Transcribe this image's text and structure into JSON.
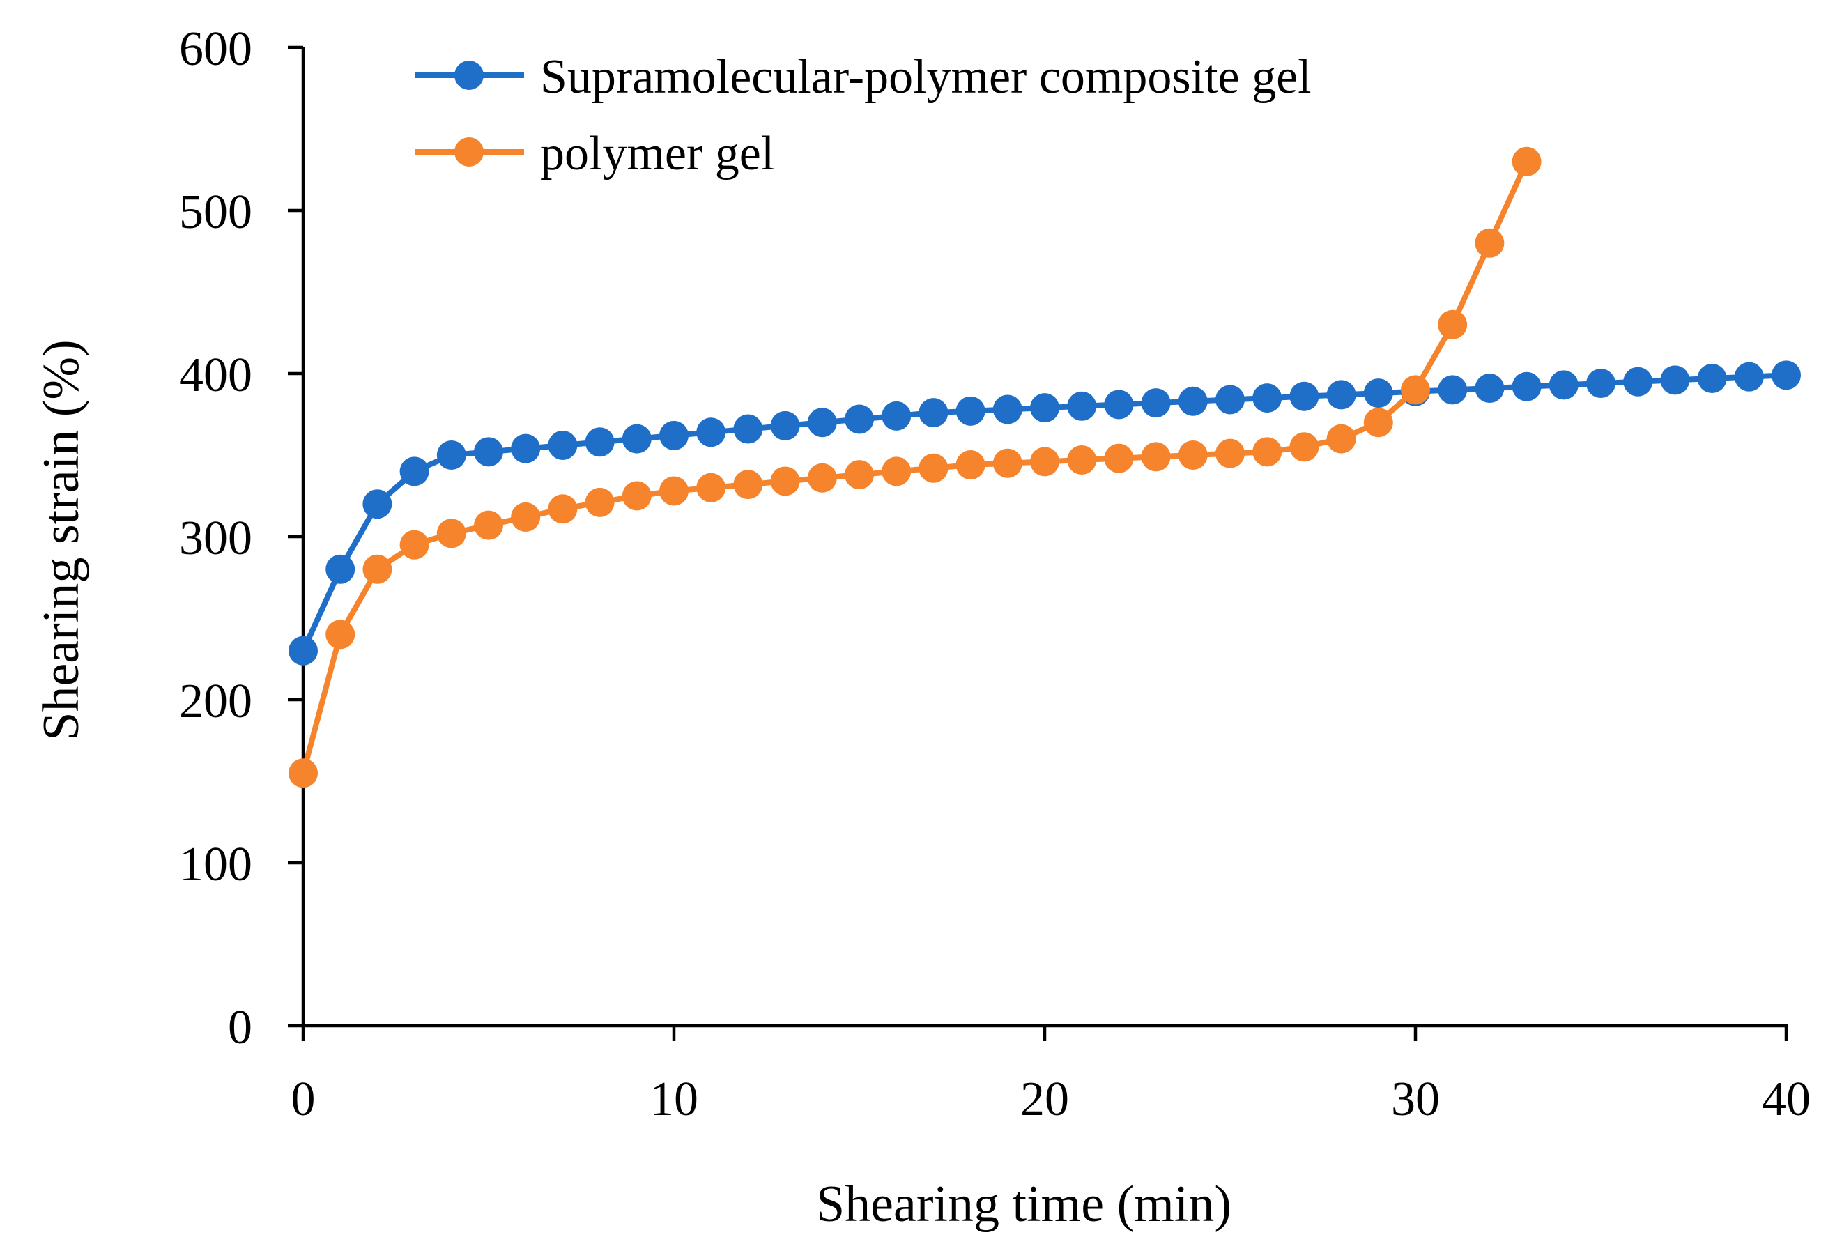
{
  "chart_data": {
    "type": "line",
    "title": "",
    "xlabel": "Shearing time (min)",
    "ylabel": "Shearing strain (%)",
    "xlim": [
      0,
      40
    ],
    "ylim": [
      0,
      600
    ],
    "xticks": [
      0,
      10,
      20,
      30,
      40
    ],
    "yticks": [
      0,
      100,
      200,
      300,
      400,
      500,
      600
    ],
    "grid": false,
    "legend_position": "top-center",
    "series": [
      {
        "name": "Supramolecular-polymer composite gel",
        "color": "#1f6fc8",
        "x": [
          0,
          1,
          2,
          3,
          4,
          5,
          6,
          7,
          8,
          9,
          10,
          11,
          12,
          13,
          14,
          15,
          16,
          17,
          18,
          19,
          20,
          21,
          22,
          23,
          24,
          25,
          26,
          27,
          28,
          29,
          30,
          31,
          32,
          33,
          34,
          35,
          36,
          37,
          38,
          39,
          40
        ],
        "values": [
          230,
          280,
          320,
          340,
          350,
          352,
          354,
          356,
          358,
          360,
          362,
          364,
          366,
          368,
          370,
          372,
          374,
          376,
          377,
          378,
          379,
          380,
          381,
          382,
          383,
          384,
          385,
          386,
          387,
          388,
          389,
          390,
          391,
          392,
          393,
          394,
          395,
          396,
          397,
          398,
          399
        ]
      },
      {
        "name": "polymer gel",
        "color": "#f5842c",
        "x": [
          0,
          1,
          2,
          3,
          4,
          5,
          6,
          7,
          8,
          9,
          10,
          11,
          12,
          13,
          14,
          15,
          16,
          17,
          18,
          19,
          20,
          21,
          22,
          23,
          24,
          25,
          26,
          27,
          28,
          29,
          30,
          31,
          32,
          33
        ],
        "values": [
          155,
          240,
          280,
          295,
          302,
          307,
          312,
          317,
          321,
          325,
          328,
          330,
          332,
          334,
          336,
          338,
          340,
          342,
          344,
          345,
          346,
          347,
          348,
          349,
          350,
          351,
          352,
          355,
          360,
          370,
          390,
          430,
          480,
          530
        ]
      }
    ]
  }
}
